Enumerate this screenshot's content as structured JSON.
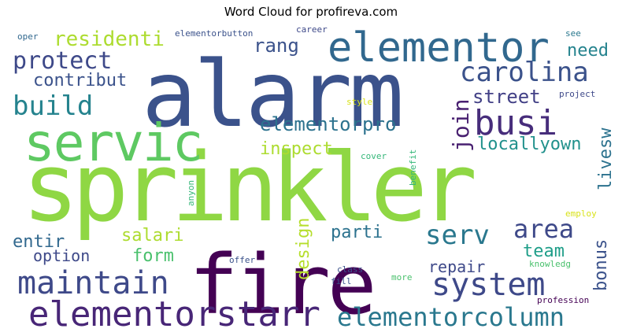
{
  "title": "Word Cloud for profireva.com",
  "chart_data": {
    "type": "wordcloud",
    "title": "Word Cloud for profireva.com",
    "words": [
      {
        "text": "sprinkler",
        "weight": 1.0,
        "color": "#8fd744",
        "orientation": "horizontal"
      },
      {
        "text": "alarm",
        "weight": 0.82,
        "color": "#3b528b",
        "orientation": "horizontal"
      },
      {
        "text": "fire",
        "weight": 0.7,
        "color": "#440154",
        "orientation": "horizontal"
      },
      {
        "text": "servic",
        "weight": 0.5,
        "color": "#5ec962",
        "orientation": "horizontal"
      },
      {
        "text": "elementor",
        "weight": 0.36,
        "color": "#31688e",
        "orientation": "horizontal"
      },
      {
        "text": "elementorstarr",
        "weight": 0.3,
        "color": "#482677",
        "orientation": "horizontal"
      },
      {
        "text": "maintain",
        "weight": 0.26,
        "color": "#3e4989",
        "orientation": "horizontal"
      },
      {
        "text": "system",
        "weight": 0.26,
        "color": "#3e4989",
        "orientation": "horizontal"
      },
      {
        "text": "busi",
        "weight": 0.27,
        "color": "#472d7b",
        "orientation": "horizontal"
      },
      {
        "text": "elementorcolumn",
        "weight": 0.22,
        "color": "#2a788e",
        "orientation": "horizontal"
      },
      {
        "text": "build",
        "weight": 0.22,
        "color": "#25838e",
        "orientation": "horizontal"
      },
      {
        "text": "carolina",
        "weight": 0.22,
        "color": "#3b528b",
        "orientation": "horizontal"
      },
      {
        "text": "protect",
        "weight": 0.2,
        "color": "#3e4989",
        "orientation": "horizontal"
      },
      {
        "text": "serv",
        "weight": 0.21,
        "color": "#2a788e",
        "orientation": "horizontal"
      },
      {
        "text": "area",
        "weight": 0.2,
        "color": "#3e4989",
        "orientation": "horizontal"
      },
      {
        "text": "join",
        "weight": 0.18,
        "color": "#481f70",
        "orientation": "vertical"
      },
      {
        "text": "residenti",
        "weight": 0.17,
        "color": "#addc30",
        "orientation": "horizontal"
      },
      {
        "text": "elementorpro",
        "weight": 0.16,
        "color": "#2c728e",
        "orientation": "horizontal"
      },
      {
        "text": "street",
        "weight": 0.15,
        "color": "#424086",
        "orientation": "horizontal"
      },
      {
        "text": "rang",
        "weight": 0.15,
        "color": "#3b528b",
        "orientation": "horizontal"
      },
      {
        "text": "need",
        "weight": 0.15,
        "color": "#25838e",
        "orientation": "horizontal"
      },
      {
        "text": "livesw",
        "weight": 0.15,
        "color": "#2c728e",
        "orientation": "vertical"
      },
      {
        "text": "contribut",
        "weight": 0.14,
        "color": "#3b528b",
        "orientation": "horizontal"
      },
      {
        "text": "locallyown",
        "weight": 0.14,
        "color": "#21918c",
        "orientation": "horizontal"
      },
      {
        "text": "inspect",
        "weight": 0.14,
        "color": "#addc30",
        "orientation": "horizontal"
      },
      {
        "text": "design",
        "weight": 0.14,
        "color": "#b5de2b",
        "orientation": "vertical"
      },
      {
        "text": "entir",
        "weight": 0.14,
        "color": "#31688e",
        "orientation": "horizontal"
      },
      {
        "text": "salari",
        "weight": 0.14,
        "color": "#addc30",
        "orientation": "horizontal"
      },
      {
        "text": "parti",
        "weight": 0.14,
        "color": "#2c728e",
        "orientation": "horizontal"
      },
      {
        "text": "team",
        "weight": 0.14,
        "color": "#1f9e89",
        "orientation": "horizontal"
      },
      {
        "text": "bonus",
        "weight": 0.14,
        "color": "#3b528b",
        "orientation": "vertical"
      },
      {
        "text": "form",
        "weight": 0.14,
        "color": "#4ac16d",
        "orientation": "horizontal"
      },
      {
        "text": "option",
        "weight": 0.13,
        "color": "#3e4989",
        "orientation": "horizontal"
      },
      {
        "text": "repair",
        "weight": 0.13,
        "color": "#3e4989",
        "orientation": "horizontal"
      },
      {
        "text": "elementorbutton",
        "weight": 0.07,
        "color": "#3b528b",
        "orientation": "horizontal"
      },
      {
        "text": "career",
        "weight": 0.07,
        "color": "#3e4989",
        "orientation": "horizontal"
      },
      {
        "text": "oper",
        "weight": 0.07,
        "color": "#31688e",
        "orientation": "horizontal"
      },
      {
        "text": "see",
        "weight": 0.07,
        "color": "#2a788e",
        "orientation": "horizontal"
      },
      {
        "text": "project",
        "weight": 0.07,
        "color": "#3e4989",
        "orientation": "horizontal"
      },
      {
        "text": "style",
        "weight": 0.07,
        "color": "#d8e219",
        "orientation": "horizontal"
      },
      {
        "text": "cover",
        "weight": 0.07,
        "color": "#35b779",
        "orientation": "horizontal"
      },
      {
        "text": "benefit",
        "weight": 0.07,
        "color": "#35b779",
        "orientation": "vertical"
      },
      {
        "text": "anyon",
        "weight": 0.07,
        "color": "#35b779",
        "orientation": "vertical"
      },
      {
        "text": "employ",
        "weight": 0.07,
        "color": "#d8e219",
        "orientation": "horizontal"
      },
      {
        "text": "offer",
        "weight": 0.07,
        "color": "#3b528b",
        "orientation": "horizontal"
      },
      {
        "text": "class",
        "weight": 0.07,
        "color": "#3b528b",
        "orientation": "horizontal"
      },
      {
        "text": "knowledg",
        "weight": 0.07,
        "color": "#4ac16d",
        "orientation": "horizontal"
      },
      {
        "text": "fill",
        "weight": 0.07,
        "color": "#3b528b",
        "orientation": "horizontal"
      },
      {
        "text": "more",
        "weight": 0.07,
        "color": "#4ac16d",
        "orientation": "horizontal"
      },
      {
        "text": "profession",
        "weight": 0.07,
        "color": "#440154",
        "orientation": "horizontal"
      }
    ]
  }
}
